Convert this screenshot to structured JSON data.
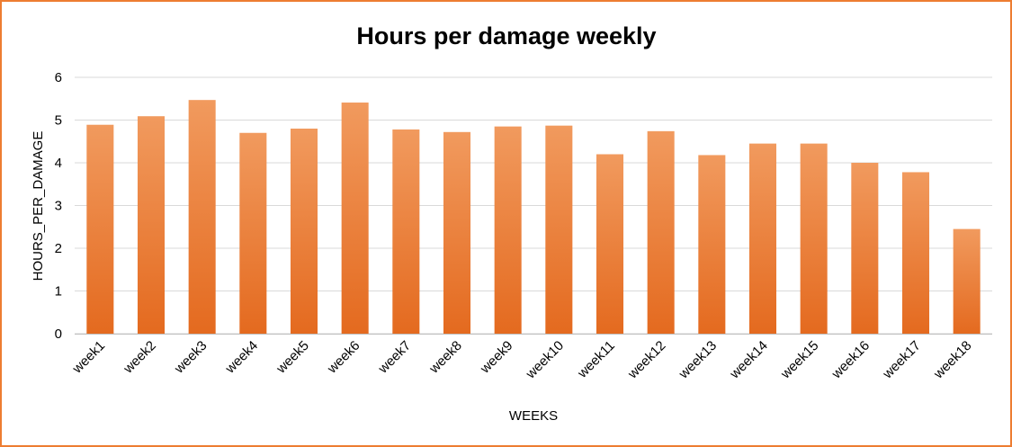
{
  "chart_data": {
    "type": "bar",
    "title": "Hours per damage weekly",
    "xlabel": "WEEKS",
    "ylabel": "HOURS_PER_DAMAGE",
    "categories": [
      "week1",
      "week2",
      "week3",
      "week4",
      "week5",
      "week6",
      "week7",
      "week8",
      "week9",
      "week10",
      "week11",
      "week12",
      "week13",
      "week14",
      "week15",
      "week16",
      "week17",
      "week18"
    ],
    "values": [
      4.89,
      5.09,
      5.47,
      4.7,
      4.8,
      5.41,
      4.78,
      4.72,
      4.85,
      4.87,
      4.2,
      4.74,
      4.18,
      4.45,
      4.45,
      4.0,
      3.78,
      2.45
    ],
    "ylim": [
      0,
      6
    ],
    "yticks": [
      "0",
      "1",
      "2",
      "3",
      "4",
      "5",
      "6"
    ],
    "grid": true,
    "legend": "none",
    "colors": {
      "bar_top": "#F19A5E",
      "bar_bottom": "#E46A1F",
      "frame": "#ED7D31",
      "grid": "#D9D9D9"
    }
  }
}
